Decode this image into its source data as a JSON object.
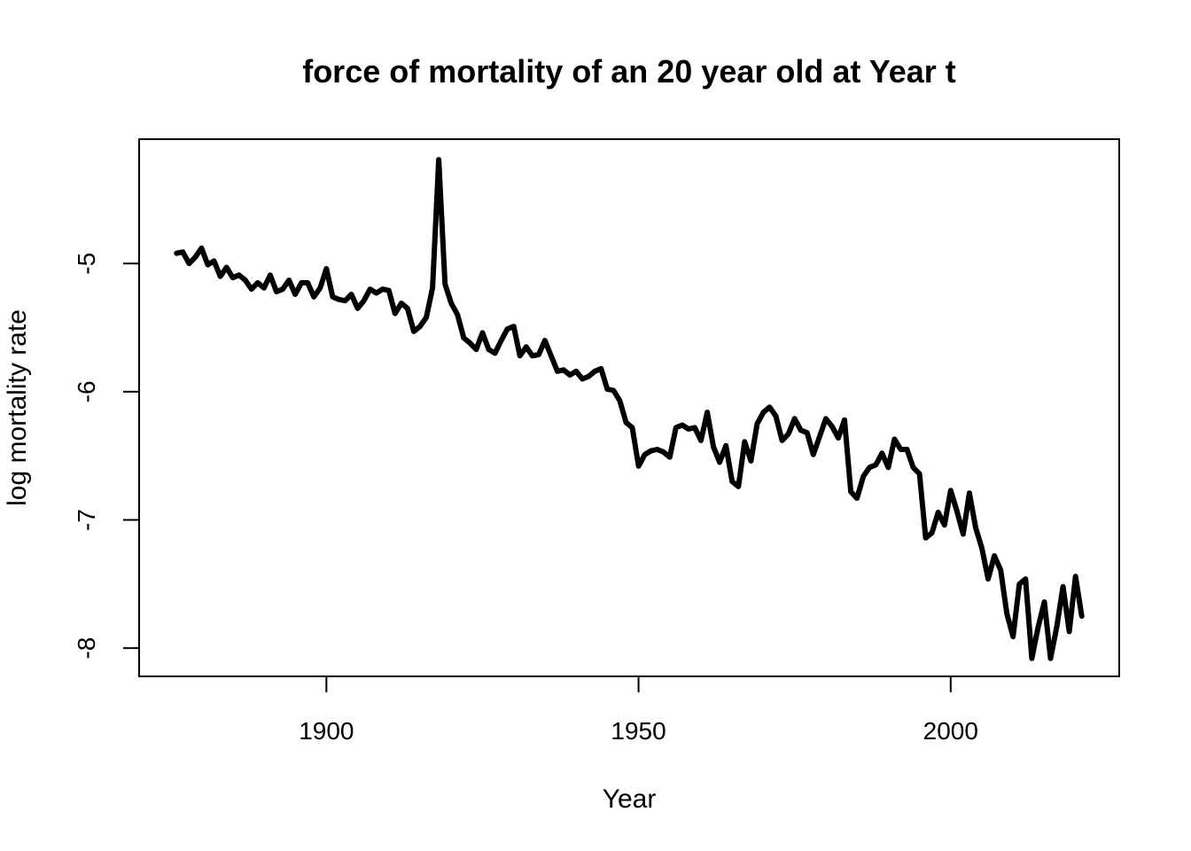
{
  "chart_data": {
    "type": "line",
    "title": "force of mortality of an 20 year old at Year t",
    "xlabel": "Year",
    "ylabel": "log mortality rate",
    "xlim": [
      1870,
      2027
    ],
    "ylim": [
      -8.22,
      -4.03
    ],
    "x_ticks": [
      1900,
      1950,
      2000
    ],
    "x_tick_labels": [
      "1900",
      "1950",
      "2000"
    ],
    "y_ticks": [
      -5,
      -6,
      -7,
      -8
    ],
    "y_tick_labels": [
      "-5",
      "-6",
      "-7",
      "-8"
    ],
    "grid": false,
    "legend": "none",
    "line_color": "#000000",
    "series": [
      {
        "x": [
          1876,
          1877,
          1878,
          1879,
          1880,
          1881,
          1882,
          1883,
          1884,
          1885,
          1886,
          1887,
          1888,
          1889,
          1890,
          1891,
          1892,
          1893,
          1894,
          1895,
          1896,
          1897,
          1898,
          1899,
          1900,
          1901,
          1902,
          1903,
          1904,
          1905,
          1906,
          1907,
          1908,
          1909,
          1910,
          1911,
          1912,
          1913,
          1914,
          1915,
          1916,
          1917,
          1918,
          1919,
          1920,
          1921,
          1922,
          1923,
          1924,
          1925,
          1926,
          1927,
          1928,
          1929,
          1930,
          1931,
          1932,
          1933,
          1934,
          1935,
          1936,
          1937,
          1938,
          1939,
          1940,
          1941,
          1942,
          1943,
          1944,
          1945,
          1946,
          1947,
          1948,
          1949,
          1950,
          1951,
          1952,
          1953,
          1954,
          1955,
          1956,
          1957,
          1958,
          1959,
          1960,
          1961,
          1962,
          1963,
          1964,
          1965,
          1966,
          1967,
          1968,
          1969,
          1970,
          1971,
          1972,
          1973,
          1974,
          1975,
          1976,
          1977,
          1978,
          1979,
          1980,
          1981,
          1982,
          1983,
          1984,
          1985,
          1986,
          1987,
          1988,
          1989,
          1990,
          1991,
          1992,
          1993,
          1994,
          1995,
          1996,
          1997,
          1998,
          1999,
          2000,
          2001,
          2002,
          2003,
          2004,
          2005,
          2006,
          2007,
          2008,
          2009,
          2010,
          2011,
          2012,
          2013,
          2014,
          2015,
          2016,
          2017,
          2018,
          2019,
          2020,
          2021
        ],
        "values": [
          -4.92,
          -4.91,
          -5.0,
          -4.95,
          -4.88,
          -5.01,
          -4.98,
          -5.1,
          -5.03,
          -5.11,
          -5.09,
          -5.13,
          -5.2,
          -5.15,
          -5.19,
          -5.09,
          -5.22,
          -5.2,
          -5.13,
          -5.24,
          -5.15,
          -5.15,
          -5.26,
          -5.19,
          -5.04,
          -5.26,
          -5.28,
          -5.29,
          -5.24,
          -5.35,
          -5.29,
          -5.2,
          -5.23,
          -5.2,
          -5.21,
          -5.39,
          -5.31,
          -5.35,
          -5.53,
          -5.49,
          -5.42,
          -5.19,
          -4.19,
          -5.16,
          -5.31,
          -5.4,
          -5.58,
          -5.62,
          -5.67,
          -5.54,
          -5.67,
          -5.7,
          -5.6,
          -5.51,
          -5.49,
          -5.72,
          -5.65,
          -5.72,
          -5.71,
          -5.6,
          -5.72,
          -5.84,
          -5.83,
          -5.87,
          -5.84,
          -5.9,
          -5.88,
          -5.84,
          -5.82,
          -5.98,
          -5.99,
          -6.07,
          -6.24,
          -6.28,
          -6.58,
          -6.49,
          -6.46,
          -6.45,
          -6.47,
          -6.51,
          -6.28,
          -6.26,
          -6.29,
          -6.28,
          -6.38,
          -6.16,
          -6.43,
          -6.55,
          -6.42,
          -6.7,
          -6.74,
          -6.39,
          -6.54,
          -6.25,
          -6.16,
          -6.12,
          -6.19,
          -6.38,
          -6.33,
          -6.21,
          -6.3,
          -6.32,
          -6.49,
          -6.35,
          -6.21,
          -6.27,
          -6.36,
          -6.22,
          -6.78,
          -6.83,
          -6.66,
          -6.59,
          -6.57,
          -6.48,
          -6.59,
          -6.37,
          -6.45,
          -6.45,
          -6.59,
          -6.64,
          -7.14,
          -7.1,
          -6.94,
          -7.04,
          -6.77,
          -6.93,
          -7.11,
          -6.79,
          -7.06,
          -7.22,
          -7.46,
          -7.28,
          -7.39,
          -7.73,
          -7.91,
          -7.5,
          -7.46,
          -8.08,
          -7.84,
          -7.64,
          -8.08,
          -7.83,
          -7.52,
          -7.87,
          -7.44,
          -7.75
        ]
      }
    ]
  }
}
